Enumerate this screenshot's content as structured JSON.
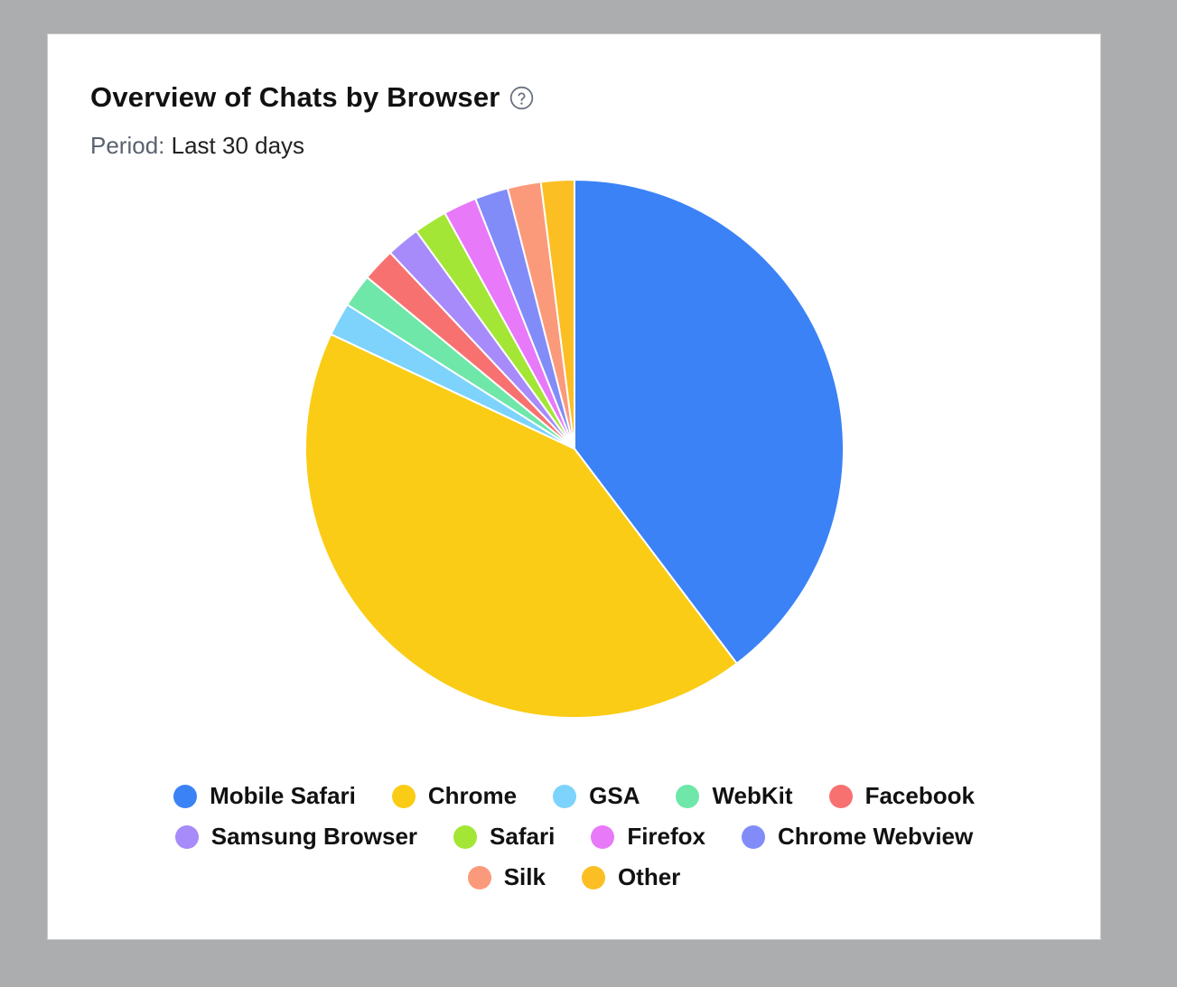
{
  "header": {
    "title": "Overview of Chats by Browser",
    "help_icon": "question-circle-icon",
    "period_label": "Period:",
    "period_value": "Last 30 days"
  },
  "chart_data": {
    "type": "pie",
    "categories": [
      "Mobile Safari",
      "Chrome",
      "GSA",
      "WebKit",
      "Facebook",
      "Samsung Browser",
      "Safari",
      "Firefox",
      "Chrome Webview",
      "Silk",
      "Other"
    ],
    "values": [
      39.7,
      42.3,
      2.0,
      2.0,
      2.0,
      2.0,
      2.0,
      2.0,
      2.0,
      2.0,
      2.0
    ],
    "colors": [
      "#3b82f6",
      "#facc15",
      "#7dd3fc",
      "#6ee7a8",
      "#f87171",
      "#a78bfa",
      "#a3e635",
      "#e879f9",
      "#818cf8",
      "#fb9a7a",
      "#fbbf24"
    ],
    "legend_position": "bottom",
    "title": "Overview of Chats by Browser"
  },
  "legend_rows": [
    [
      0,
      1,
      2,
      3,
      4
    ],
    [
      5,
      6,
      7,
      8
    ],
    [
      9,
      10
    ]
  ]
}
